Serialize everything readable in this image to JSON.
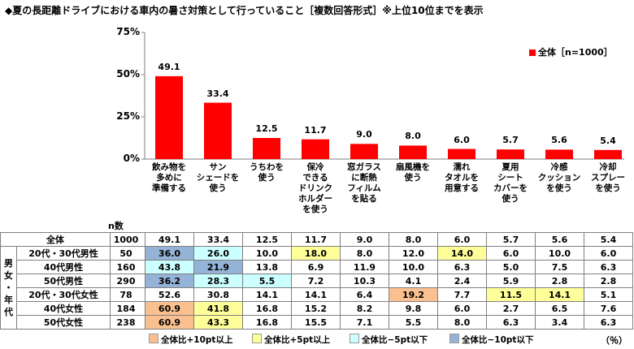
{
  "title": "◆夏の長距離ドライブにおける車内の暑さ対策として行っていること［複数回答形式］※上位10位までを表示",
  "n_label": "n数",
  "unit_label": "（％）",
  "legend": {
    "label": "全体［n=1000］",
    "color": "#ff0000"
  },
  "highlight_legend": [
    {
      "label": "全体比+10pt以上",
      "color": "#fac090"
    },
    {
      "label": "全体比+5pt以上",
      "color": "#ffff99"
    },
    {
      "label": "全体比−5pt以下",
      "color": "#ccffff"
    },
    {
      "label": "全体比−10pt以下",
      "color": "#95b3d7"
    }
  ],
  "side_label": [
    "男",
    "女",
    "・",
    "年",
    "代"
  ],
  "rows": [
    {
      "label": "全体",
      "n": 1000,
      "values": [
        "49.1",
        "33.4",
        "12.5",
        "11.7",
        "9.0",
        "8.0",
        "6.0",
        "5.7",
        "5.6",
        "5.4"
      ]
    },
    {
      "label": "20代・30代男性",
      "n": 50,
      "values": [
        "36.0",
        "26.0",
        "10.0",
        "18.0",
        "8.0",
        "12.0",
        "14.0",
        "6.0",
        "10.0",
        "6.0"
      ]
    },
    {
      "label": "40代男性",
      "n": 160,
      "values": [
        "43.8",
        "21.9",
        "13.8",
        "6.9",
        "11.9",
        "10.0",
        "6.3",
        "5.0",
        "7.5",
        "6.3"
      ]
    },
    {
      "label": "50代男性",
      "n": 290,
      "values": [
        "36.2",
        "28.3",
        "5.5",
        "7.2",
        "10.3",
        "4.1",
        "2.4",
        "5.9",
        "2.8",
        "2.8"
      ]
    },
    {
      "label": "20代・30代女性",
      "n": 78,
      "values": [
        "52.6",
        "30.8",
        "14.1",
        "14.1",
        "6.4",
        "19.2",
        "7.7",
        "11.5",
        "14.1",
        "5.1"
      ]
    },
    {
      "label": "40代女性",
      "n": 184,
      "values": [
        "60.9",
        "41.8",
        "16.8",
        "15.2",
        "8.2",
        "9.8",
        "6.0",
        "2.7",
        "6.5",
        "7.6"
      ]
    },
    {
      "label": "50代女性",
      "n": 238,
      "values": [
        "60.9",
        "43.3",
        "16.8",
        "15.5",
        "7.1",
        "5.5",
        "8.0",
        "6.3",
        "3.4",
        "6.3"
      ]
    }
  ],
  "chart_data": {
    "type": "bar",
    "categories": [
      "飲み物を多めに準備する",
      "サンシェードを使う",
      "うちわを使う",
      "保冷できるドリンクホルダーを使う",
      "窓ガラスに断熱フィルムを貼る",
      "扇風機を使う",
      "濡れタオルを用意する",
      "夏用シートカバーを使う",
      "冷感クッションを使う",
      "冷却スプレーを使う"
    ],
    "category_lines": [
      [
        "飲み物を",
        "多めに",
        "準備する"
      ],
      [
        "サン",
        "シェードを",
        "使う"
      ],
      [
        "うちわを",
        "使う"
      ],
      [
        "保冷",
        "できる",
        "ドリンク",
        "ホルダー",
        "を使う"
      ],
      [
        "窓ガラス",
        "に断熱",
        "フィルム",
        "を貼る"
      ],
      [
        "扇風機を",
        "使う"
      ],
      [
        "濡れ",
        "タオルを",
        "用意する"
      ],
      [
        "夏用",
        "シート",
        "カバーを",
        "使う"
      ],
      [
        "冷感",
        "クッション",
        "を使う"
      ],
      [
        "冷却",
        "スプレー",
        "を使う"
      ]
    ],
    "series": [
      {
        "name": "全体［n=1000］",
        "values": [
          49.1,
          33.4,
          12.5,
          11.7,
          9.0,
          8.0,
          6.0,
          5.7,
          5.6,
          5.4
        ]
      }
    ],
    "value_labels": [
      "49.1",
      "33.4",
      "12.5",
      "11.7",
      "9.0",
      "8.0",
      "6.0",
      "5.7",
      "5.6",
      "5.4"
    ],
    "ylim": [
      0,
      75
    ],
    "yticks": [
      0,
      25,
      50,
      75
    ],
    "ytick_labels": [
      "0%",
      "25%",
      "50%",
      "75%"
    ],
    "grid": false,
    "legend_position": "top-right",
    "bar_color": "#ff0000"
  }
}
